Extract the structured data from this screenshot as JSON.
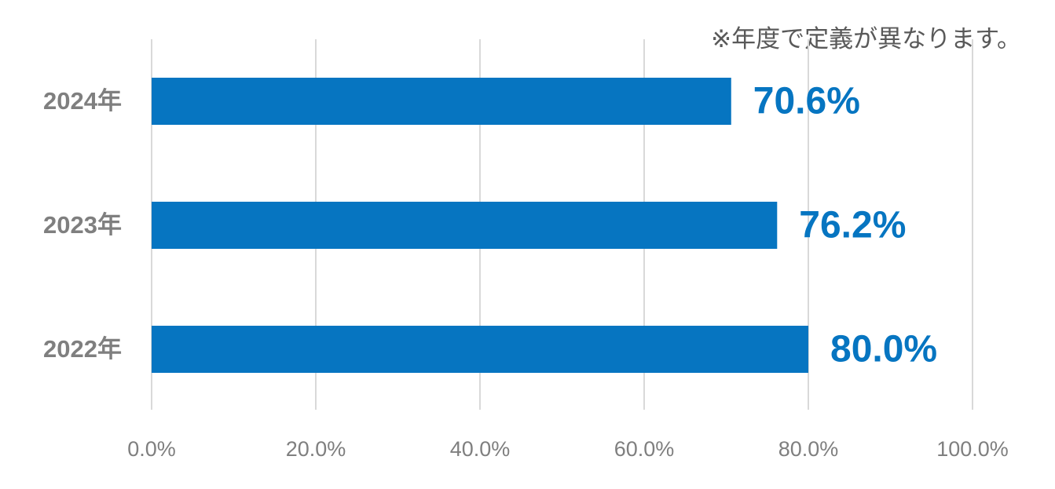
{
  "chart_data": {
    "type": "bar",
    "orientation": "horizontal",
    "annotation": "※年度で定義が異なります。",
    "categories": [
      "2024年",
      "2023年",
      "2022年"
    ],
    "values": [
      70.6,
      76.2,
      80.0
    ],
    "value_labels": [
      "70.6%",
      "76.2%",
      "80.0%"
    ],
    "color": "#0675c1",
    "xlim": [
      0,
      100
    ],
    "xticks": [
      {
        "value": 0,
        "label": "0.0%"
      },
      {
        "value": 20,
        "label": "20.0%"
      },
      {
        "value": 40,
        "label": "40.0%"
      },
      {
        "value": 60,
        "label": "60.0%"
      },
      {
        "value": 80,
        "label": "80.0%"
      },
      {
        "value": 100,
        "label": "100.0%"
      }
    ],
    "grid": true
  }
}
